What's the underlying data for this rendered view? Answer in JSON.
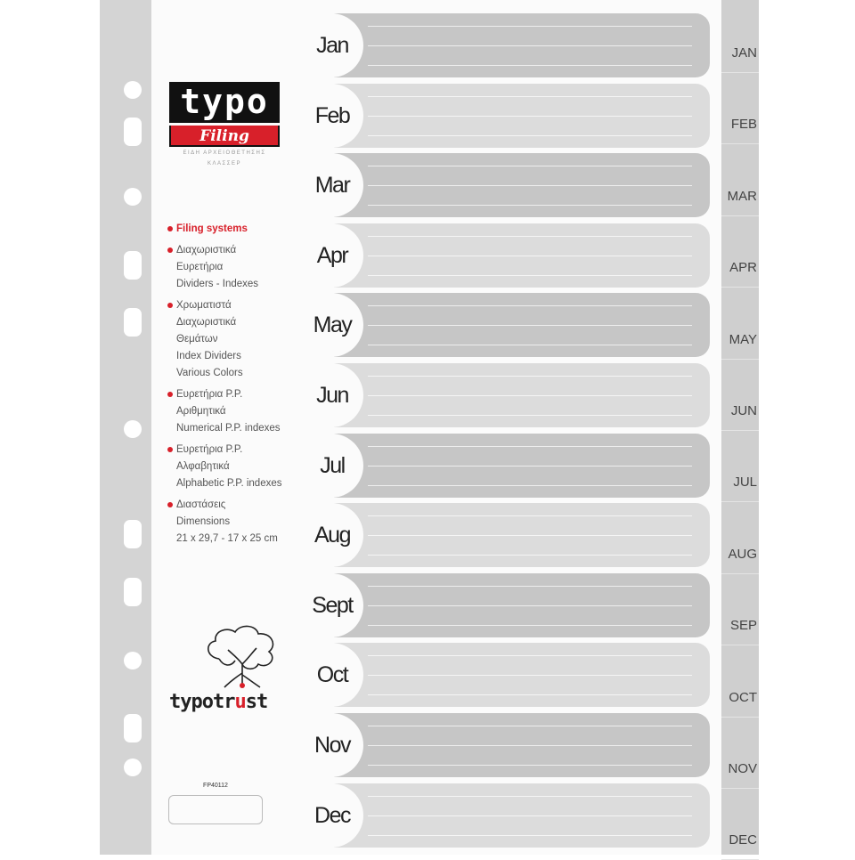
{
  "brand": {
    "logo_top": "typo",
    "logo_bottom": "Filing",
    "logo_sub_1": "ΕΙΔΗ ΑΡΧΕΙΟΘΕΤΗΣΗΣ",
    "logo_sub_2": "ΚΛΑΣΣΕΡ",
    "trust_pre": "typotr",
    "trust_u": "u",
    "trust_post": "st",
    "product_code": "FP40112"
  },
  "features": [
    {
      "lines": [
        "Filing systems"
      ],
      "highlight": true
    },
    {
      "lines": [
        "Διαχωριστικά",
        "Ευρετήρια",
        "Dividers - Indexes"
      ]
    },
    {
      "lines": [
        "Χρωματιστά",
        "Διαχωριστικά",
        "Θεμάτων",
        "Index Dividers",
        "Various Colors"
      ]
    },
    {
      "lines": [
        "Ευρετήρια P.P.",
        "Αριθμητικά",
        "Numerical P.P. indexes"
      ]
    },
    {
      "lines": [
        "Ευρετήρια P.P.",
        "Αλφαβητικά",
        "Alphabetic P.P. indexes"
      ]
    },
    {
      "lines": [
        "Διαστάσεις",
        "Dimensions",
        "21 x 29,7 - 17 x 25 cm"
      ]
    }
  ],
  "months": [
    "Jan",
    "Feb",
    "Mar",
    "Apr",
    "May",
    "Jun",
    "Jul",
    "Aug",
    "Sept",
    "Oct",
    "Nov",
    "Dec"
  ],
  "tabs": [
    "JAN",
    "FEB",
    "MAR",
    "APR",
    "MAY",
    "JUN",
    "JUL",
    "AUG",
    "SEP",
    "OCT",
    "NOV",
    "DEC"
  ],
  "colors": {
    "dark_row": "#c6c6c6",
    "light_row": "#dcdcdc",
    "accent": "#d8202a"
  }
}
